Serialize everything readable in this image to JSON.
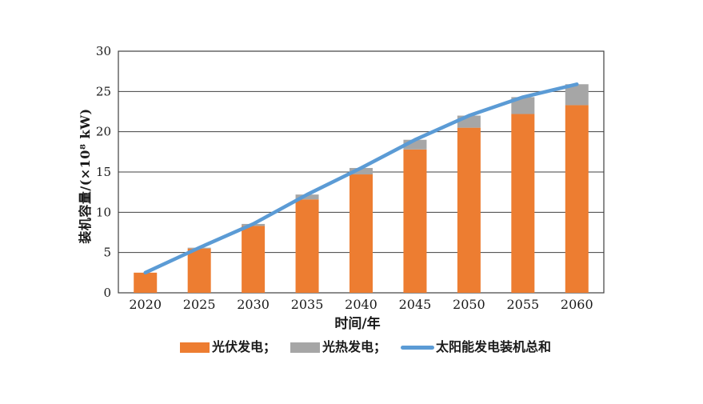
{
  "figure": {
    "background": "#ffffff"
  },
  "chart_data": {
    "type": "bar",
    "subtype": "stacked-bars-with-line-overlay",
    "title": "",
    "xlabel": "时间/年",
    "ylabel": "装机容量/(×10⁸ kW)",
    "categories": [
      "2020",
      "2025",
      "2030",
      "2035",
      "2040",
      "2045",
      "2050",
      "2055",
      "2060"
    ],
    "series": [
      {
        "key": "pv",
        "name": "光伏发电",
        "type": "bar",
        "color": "#ED7D31",
        "values": [
          2.5,
          5.5,
          8.3,
          11.6,
          14.7,
          17.8,
          20.5,
          22.2,
          23.3
        ]
      },
      {
        "key": "csp",
        "name": "光热发电",
        "type": "bar",
        "color": "#A6A6A6",
        "values": [
          0,
          0.1,
          0.25,
          0.6,
          0.8,
          1.2,
          1.5,
          2.1,
          2.6
        ]
      },
      {
        "key": "total",
        "name": "太阳能发电装机总和",
        "type": "line",
        "color": "#5B9BD5",
        "values": [
          2.5,
          5.6,
          8.55,
          12.2,
          15.5,
          19.0,
          22.0,
          24.3,
          25.9
        ]
      }
    ],
    "ylim": [
      0,
      30
    ],
    "ytick_step": 5,
    "yticks": [
      0,
      5,
      10,
      15,
      20,
      25,
      30
    ],
    "grid": "horizontal",
    "legend_position": "bottom",
    "legend": [
      {
        "label": "光伏发电；",
        "color": "#ED7D31",
        "marker": "rect"
      },
      {
        "label": "光热发电；",
        "color": "#A6A6A6",
        "marker": "rect"
      },
      {
        "label": "太阳能发电装机总和",
        "color": "#5B9BD5",
        "marker": "line"
      }
    ],
    "axis_color": "#404040",
    "text_color": "#1a1a1a"
  }
}
